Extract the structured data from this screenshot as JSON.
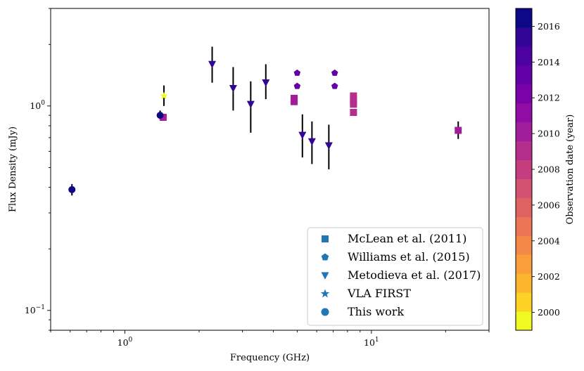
{
  "chart_data": {
    "type": "scatter",
    "xscale": "log",
    "yscale": "log",
    "xlabel": "Frequency (GHz)",
    "ylabel": "Flux Density (mJy)",
    "xlim": [
      0.5,
      30
    ],
    "ylim": [
      0.08,
      3.0
    ],
    "x_ticks": [
      {
        "value": 1,
        "base": "10",
        "exp": "0"
      },
      {
        "value": 10,
        "base": "10",
        "exp": "1"
      }
    ],
    "y_ticks": [
      {
        "value": 0.1,
        "base": "10",
        "exp": "−1"
      },
      {
        "value": 1,
        "base": "10",
        "exp": "0"
      }
    ],
    "legend": {
      "position": "lower-right",
      "marker_color": "#1f77b4",
      "entries": [
        {
          "label": "McLean et al. (2011)",
          "marker": "square"
        },
        {
          "label": "Williams et al. (2015)",
          "marker": "pentagon"
        },
        {
          "label": "Metodieva et al. (2017)",
          "marker": "triangle-down"
        },
        {
          "label": "VLA FIRST",
          "marker": "star"
        },
        {
          "label": "This work",
          "marker": "circle"
        }
      ]
    },
    "colorbar": {
      "label": "Observation date (year)",
      "min": 1999,
      "max": 2017,
      "ticks": [
        2000,
        2002,
        2004,
        2006,
        2008,
        2010,
        2012,
        2014,
        2016
      ],
      "colors": [
        "#f0f921",
        "#fcd225",
        "#fdb42f",
        "#fa9e3b",
        "#f48849",
        "#eb7655",
        "#df6263",
        "#d35171",
        "#c43e7f",
        "#b42e8d",
        "#a21d9a",
        "#8f0da4",
        "#7a02a8",
        "#6300a7",
        "#4c02a1",
        "#330597",
        "#0d0887"
      ]
    },
    "series": [
      {
        "name": "McLean et al. (2011)",
        "marker": "square",
        "points": [
          {
            "x": 1.43,
            "y": 0.88,
            "year": 2010
          },
          {
            "x": 4.86,
            "y": 1.05,
            "year": 2010
          },
          {
            "x": 4.86,
            "y": 1.09,
            "year": 2010
          },
          {
            "x": 8.46,
            "y": 0.93,
            "year": 2009
          },
          {
            "x": 8.46,
            "y": 1.02,
            "year": 2009
          },
          {
            "x": 8.46,
            "y": 1.06,
            "year": 2009
          },
          {
            "x": 8.46,
            "y": 1.12,
            "year": 2009
          },
          {
            "x": 22.5,
            "y": 0.76,
            "year": 2010,
            "err_lo": 0.07,
            "err_hi": 0.08
          }
        ]
      },
      {
        "name": "Williams et al. (2015)",
        "marker": "pentagon",
        "points": [
          {
            "x": 5.0,
            "y": 1.45,
            "year": 2013
          },
          {
            "x": 5.0,
            "y": 1.25,
            "year": 2013
          },
          {
            "x": 7.1,
            "y": 1.45,
            "year": 2013
          },
          {
            "x": 7.1,
            "y": 1.25,
            "year": 2013
          }
        ]
      },
      {
        "name": "Metodieva et al. (2017)",
        "marker": "triangle-down",
        "points": [
          {
            "x": 2.26,
            "y": 1.6,
            "year": 2015,
            "err_lo": 0.3,
            "err_hi": 0.35
          },
          {
            "x": 2.75,
            "y": 1.22,
            "year": 2015,
            "err_lo": 0.27,
            "err_hi": 0.33
          },
          {
            "x": 3.24,
            "y": 1.02,
            "year": 2015,
            "err_lo": 0.28,
            "err_hi": 0.3
          },
          {
            "x": 3.73,
            "y": 1.3,
            "year": 2015,
            "err_lo": 0.22,
            "err_hi": 0.3
          },
          {
            "x": 5.25,
            "y": 0.72,
            "year": 2015,
            "err_lo": 0.16,
            "err_hi": 0.19
          },
          {
            "x": 5.74,
            "y": 0.67,
            "year": 2015,
            "err_lo": 0.15,
            "err_hi": 0.17
          },
          {
            "x": 6.72,
            "y": 0.64,
            "year": 2015,
            "err_lo": 0.15,
            "err_hi": 0.17
          }
        ]
      },
      {
        "name": "VLA FIRST",
        "marker": "star",
        "points": [
          {
            "x": 1.44,
            "y": 1.12,
            "year": 1999.5,
            "err_lo": 0.12,
            "err_hi": 0.14
          }
        ]
      },
      {
        "name": "This work",
        "marker": "circle",
        "points": [
          {
            "x": 0.61,
            "y": 0.39,
            "year": 2017,
            "err_lo": 0.025,
            "err_hi": 0.025
          },
          {
            "x": 1.39,
            "y": 0.9,
            "year": 2017,
            "err_lo": 0.04,
            "err_hi": 0.05
          }
        ]
      }
    ]
  }
}
